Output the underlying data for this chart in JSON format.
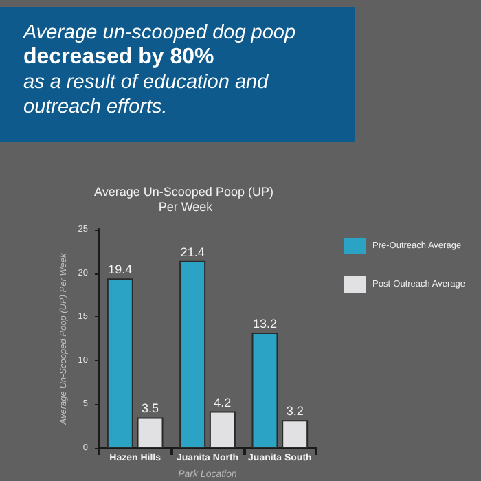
{
  "chart_data": {
    "type": "bar",
    "title": "Average Un-Scooped Poop (UP) Per Week",
    "annotations": [
      "Average un-scooped dog poop",
      "decreased by 80%",
      "as a result of education and outreach efforts."
    ],
    "xlabel": "Park Location",
    "ylabel": "Average Un-Scooped Poop (UP) Per Week",
    "categories": [
      "Hazen Hills",
      "Juanita North",
      "Juanita South"
    ],
    "series": [
      {
        "name": "Pre-Outreach Average",
        "color": "#2ba3c4",
        "values": [
          19.4,
          21.4,
          13.2
        ]
      },
      {
        "name": "Post-Outreach Average",
        "color": "#e1e1e3",
        "values": [
          3.5,
          4.2,
          3.2
        ]
      }
    ],
    "ylim": [
      0,
      25
    ],
    "yticks": [
      0,
      5,
      10,
      15,
      20,
      25
    ],
    "data_labels": true,
    "grid": false,
    "legend": "right"
  }
}
